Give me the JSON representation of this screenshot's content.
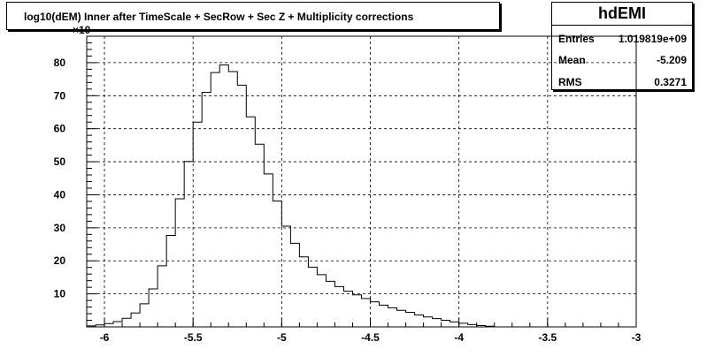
{
  "title": "log10(dEM) Inner after TimeScale + SecRow + Sec Z + Multiplicity corrections",
  "stats": {
    "name": "hdEMI",
    "rows": [
      {
        "label": "Entries",
        "value": "1.019819e+09"
      },
      {
        "label": "Mean",
        "value": "-5.209"
      },
      {
        "label": "RMS",
        "value": "0.3271"
      }
    ]
  },
  "chart_data": {
    "type": "bar",
    "histogram": true,
    "title": "log10(dEM) Inner after TimeScale + SecRow + Sec Z + Multiplicity corrections",
    "xlim": [
      -6.1,
      -3.0
    ],
    "ylim": [
      0,
      88
    ],
    "bin_width": 0.05,
    "grid": true,
    "x_ticks": [
      {
        "value": -6,
        "label": "-6"
      },
      {
        "value": -5.5,
        "label": "-5.5"
      },
      {
        "value": -5,
        "label": "-5"
      },
      {
        "value": -4.5,
        "label": "-4.5"
      },
      {
        "value": -4,
        "label": "-4"
      },
      {
        "value": -3.5,
        "label": "-3.5"
      },
      {
        "value": -3,
        "label": "-3"
      }
    ],
    "y_ticks": [
      {
        "value": 10,
        "label": "10"
      },
      {
        "value": 20,
        "label": "20"
      },
      {
        "value": 30,
        "label": "30"
      },
      {
        "value": 40,
        "label": "40"
      },
      {
        "value": 50,
        "label": "50"
      },
      {
        "value": 60,
        "label": "60"
      },
      {
        "value": 70,
        "label": "70"
      },
      {
        "value": 80,
        "label": "80"
      }
    ],
    "y_exponent_label": "×10",
    "bin_left_edges": [
      -6.1,
      -6.05,
      -6.0,
      -5.95,
      -5.9,
      -5.85,
      -5.8,
      -5.75,
      -5.7,
      -5.65,
      -5.6,
      -5.55,
      -5.5,
      -5.45,
      -5.4,
      -5.35,
      -5.3,
      -5.25,
      -5.2,
      -5.15,
      -5.1,
      -5.05,
      -5.0,
      -4.95,
      -4.9,
      -4.85,
      -4.8,
      -4.75,
      -4.7,
      -4.65,
      -4.6,
      -4.55,
      -4.5,
      -4.45,
      -4.4,
      -4.35,
      -4.3,
      -4.25,
      -4.2,
      -4.15,
      -4.1,
      -4.05,
      -4.0,
      -3.95,
      -3.9,
      -3.85
    ],
    "values": [
      0.3,
      0.6,
      1.0,
      1.6,
      2.6,
      4.2,
      7.0,
      11.5,
      18.5,
      27.7,
      38.8,
      50.1,
      62.0,
      71.0,
      77.0,
      79.3,
      77.3,
      73.2,
      63.6,
      55.3,
      46.3,
      38.1,
      30.5,
      25.3,
      21.2,
      18.1,
      15.8,
      13.8,
      12.2,
      10.8,
      9.7,
      8.6,
      7.6,
      6.6,
      5.8,
      5.0,
      4.4,
      3.6,
      3.0,
      2.5,
      2.0,
      1.5,
      1.1,
      0.7,
      0.4,
      0.2
    ]
  }
}
